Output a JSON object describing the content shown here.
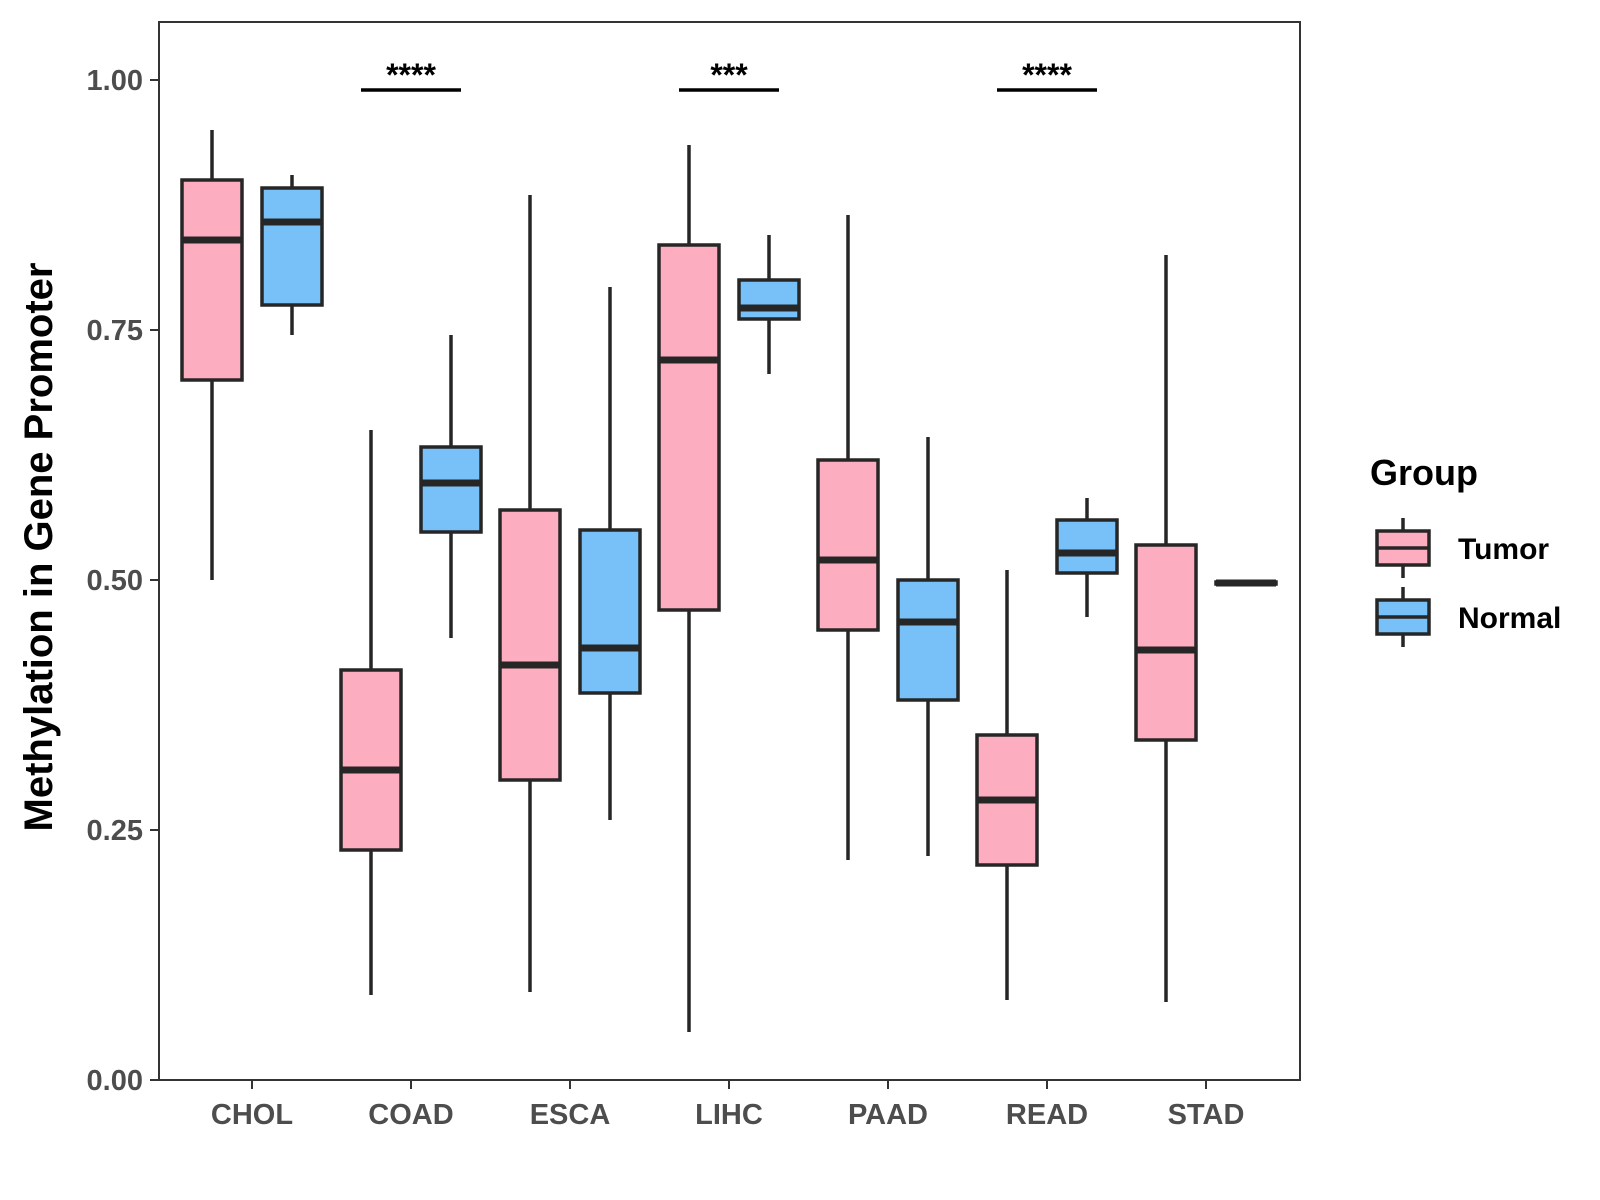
{
  "chart_data": {
    "type": "boxplot",
    "title": "",
    "xlabel": "",
    "ylabel": "Methylation in Gene Promoter",
    "ylim": [
      0,
      1.05
    ],
    "yticks": [
      0.0,
      0.25,
      0.5,
      0.75,
      1.0
    ],
    "ytick_labels": [
      "0.00",
      "0.25",
      "0.50",
      "0.75",
      "1.00"
    ],
    "grid": false,
    "categories": [
      "CHOL",
      "COAD",
      "ESCA",
      "LIHC",
      "PAAD",
      "READ",
      "STAD"
    ],
    "legend": {
      "title": "Group",
      "position": "right",
      "entries": [
        "Tumor",
        "Normal"
      ]
    },
    "colors": {
      "Tumor": "#fcaec0",
      "Normal": "#78c1f8",
      "stroke": "#262626"
    },
    "series": [
      {
        "name": "Tumor",
        "boxes": [
          {
            "category": "CHOL",
            "whisker_low": 0.5,
            "q1": 0.7,
            "median": 0.84,
            "q3": 0.9,
            "whisker_high": 0.95
          },
          {
            "category": "COAD",
            "whisker_low": 0.085,
            "q1": 0.23,
            "median": 0.31,
            "q3": 0.41,
            "whisker_high": 0.65
          },
          {
            "category": "ESCA",
            "whisker_low": 0.088,
            "q1": 0.3,
            "median": 0.415,
            "q3": 0.57,
            "whisker_high": 0.885
          },
          {
            "category": "LIHC",
            "whisker_low": 0.048,
            "q1": 0.47,
            "median": 0.72,
            "q3": 0.835,
            "whisker_high": 0.935
          },
          {
            "category": "PAAD",
            "whisker_low": 0.22,
            "q1": 0.45,
            "median": 0.52,
            "q3": 0.62,
            "whisker_high": 0.865
          },
          {
            "category": "READ",
            "whisker_low": 0.08,
            "q1": 0.215,
            "median": 0.28,
            "q3": 0.345,
            "whisker_high": 0.51
          },
          {
            "category": "STAD",
            "whisker_low": 0.078,
            "q1": 0.34,
            "median": 0.43,
            "q3": 0.535,
            "whisker_high": 0.825
          }
        ]
      },
      {
        "name": "Normal",
        "boxes": [
          {
            "category": "CHOL",
            "whisker_low": 0.745,
            "q1": 0.775,
            "median": 0.858,
            "q3": 0.892,
            "whisker_high": 0.905
          },
          {
            "category": "COAD",
            "whisker_low": 0.442,
            "q1": 0.548,
            "median": 0.597,
            "q3": 0.633,
            "whisker_high": 0.745
          },
          {
            "category": "ESCA",
            "whisker_low": 0.26,
            "q1": 0.387,
            "median": 0.432,
            "q3": 0.55,
            "whisker_high": 0.793
          },
          {
            "category": "LIHC",
            "whisker_low": 0.706,
            "q1": 0.761,
            "median": 0.772,
            "q3": 0.8,
            "whisker_high": 0.845
          },
          {
            "category": "PAAD",
            "whisker_low": 0.224,
            "q1": 0.38,
            "median": 0.458,
            "q3": 0.5,
            "whisker_high": 0.643
          },
          {
            "category": "READ",
            "whisker_low": 0.463,
            "q1": 0.507,
            "median": 0.527,
            "q3": 0.56,
            "whisker_high": 0.582
          },
          {
            "category": "STAD",
            "whisker_low": 0.495,
            "q1": 0.496,
            "median": 0.497,
            "q3": 0.498,
            "whisker_high": 0.499
          }
        ]
      }
    ],
    "annotations": [
      {
        "category": "COAD",
        "text": "****",
        "y": 0.99
      },
      {
        "category": "LIHC",
        "text": "***",
        "y": 0.99
      },
      {
        "category": "READ",
        "text": "****",
        "y": 0.99
      }
    ]
  }
}
